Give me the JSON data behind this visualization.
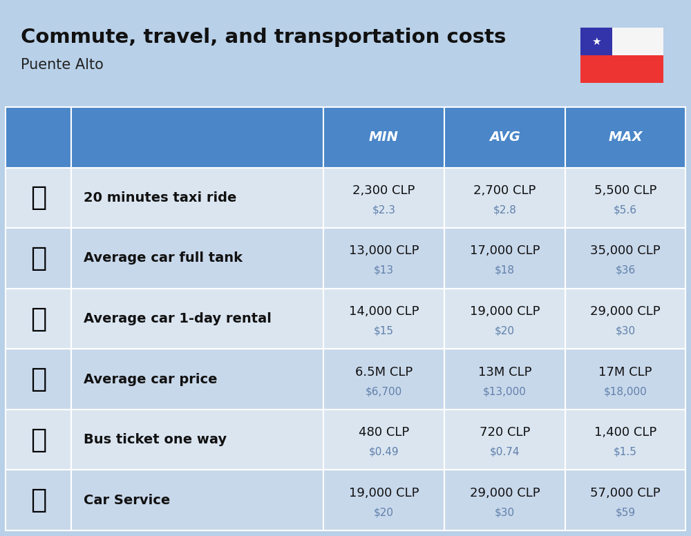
{
  "title": "Commute, travel, and transportation costs",
  "subtitle": "Puente Alto",
  "bg_color": "#b8d0e8",
  "header_bg_color": "#4a86c8",
  "header_text_color": "#ffffff",
  "row_bg_odd": "#dae5f0",
  "row_bg_even": "#c8d8eb",
  "col_headers": [
    "MIN",
    "AVG",
    "MAX"
  ],
  "rows": [
    {
      "label": "20 minutes taxi ride",
      "min_clp": "2,300 CLP",
      "min_usd": "$2.3",
      "avg_clp": "2,700 CLP",
      "avg_usd": "$2.8",
      "max_clp": "5,500 CLP",
      "max_usd": "$5.6"
    },
    {
      "label": "Average car full tank",
      "min_clp": "13,000 CLP",
      "min_usd": "$13",
      "avg_clp": "17,000 CLP",
      "avg_usd": "$18",
      "max_clp": "35,000 CLP",
      "max_usd": "$36"
    },
    {
      "label": "Average car 1-day rental",
      "min_clp": "14,000 CLP",
      "min_usd": "$15",
      "avg_clp": "19,000 CLP",
      "avg_usd": "$20",
      "max_clp": "29,000 CLP",
      "max_usd": "$30"
    },
    {
      "label": "Average car price",
      "min_clp": "6.5M CLP",
      "min_usd": "$6,700",
      "avg_clp": "13M CLP",
      "avg_usd": "$13,000",
      "max_clp": "17M CLP",
      "max_usd": "$18,000"
    },
    {
      "label": "Bus ticket one way",
      "min_clp": "480 CLP",
      "min_usd": "$0.49",
      "avg_clp": "720 CLP",
      "avg_usd": "$0.74",
      "max_clp": "1,400 CLP",
      "max_usd": "$1.5"
    },
    {
      "label": "Car Service",
      "min_clp": "19,000 CLP",
      "min_usd": "$20",
      "avg_clp": "29,000 CLP",
      "avg_usd": "$30",
      "max_clp": "57,000 CLP",
      "max_usd": "$59"
    }
  ],
  "title_fontsize": 21,
  "subtitle_fontsize": 15,
  "header_fontsize": 14,
  "cell_fontsize": 13,
  "label_fontsize": 14,
  "usd_fontsize": 11,
  "usd_color": "#6080aa",
  "icon_fontsize": 28,
  "flag_blue": "#3333aa",
  "flag_red": "#ee3333",
  "flag_white": "#f5f5f5"
}
